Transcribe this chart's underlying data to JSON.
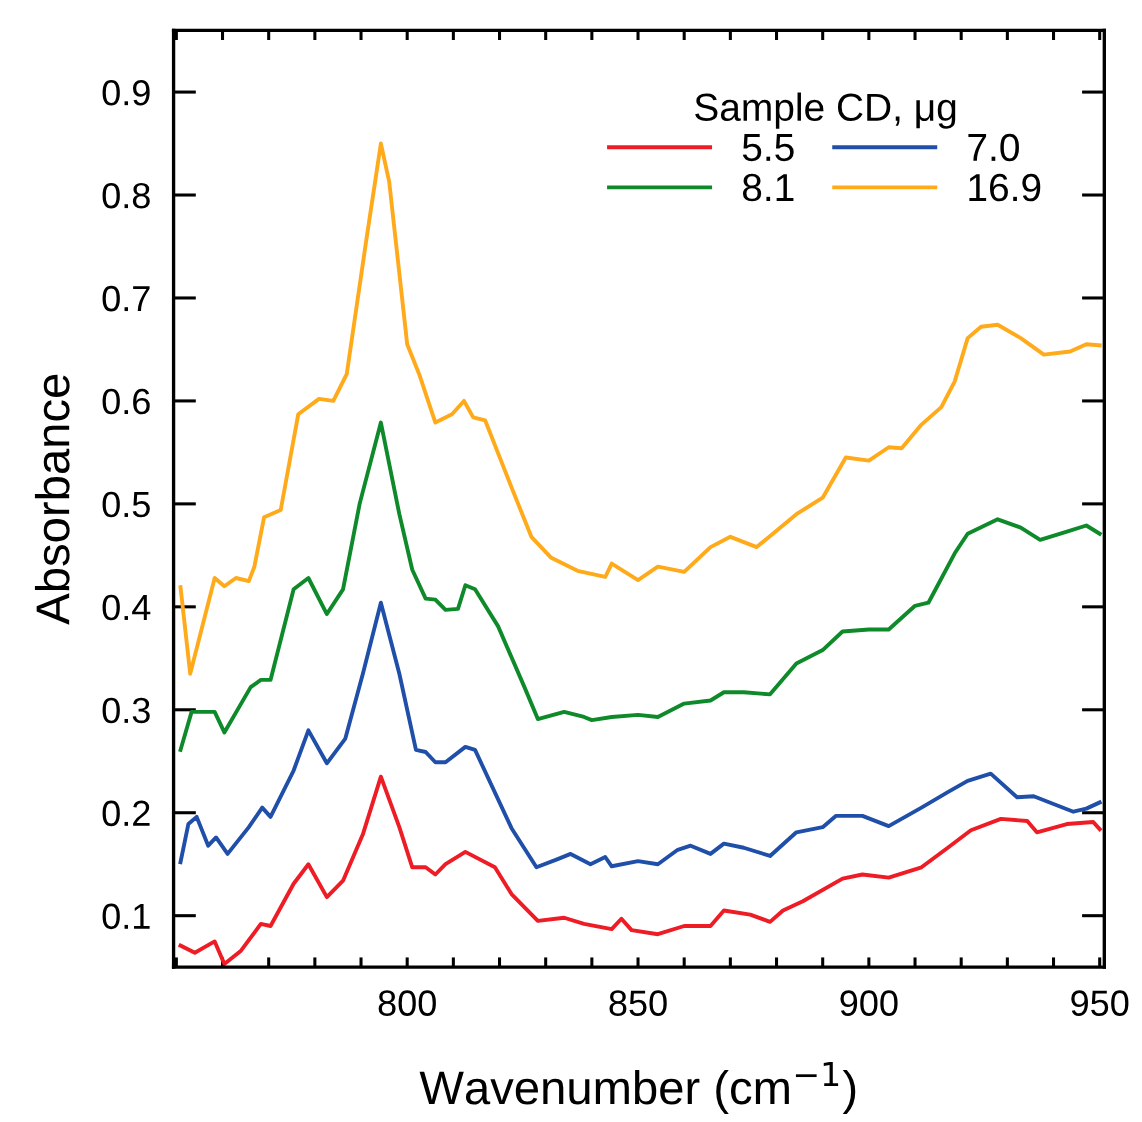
{
  "chart_data": {
    "type": "line",
    "xlabel": "Wavenumber (cm$^{−1}$)",
    "ylabel": "Absorbance",
    "legend_title": "Sample CD, μg",
    "legend": "top right",
    "grid": false,
    "marker": "none",
    "line_style": "solid",
    "xlim": [
      749.4,
      951
    ],
    "ylim": [
      0.05,
      0.96
    ],
    "xticks": [
      {
        "value": 750,
        "label": null
      },
      {
        "value": 760,
        "label": null
      },
      {
        "value": 770,
        "label": null
      },
      {
        "value": 780,
        "label": null
      },
      {
        "value": 790,
        "label": null
      },
      800,
      {
        "value": 810,
        "label": null
      },
      {
        "value": 820,
        "label": null
      },
      {
        "value": 830,
        "label": null
      },
      {
        "value": 840,
        "label": null
      },
      850,
      {
        "value": 860,
        "label": null
      },
      {
        "value": 870,
        "label": null
      },
      {
        "value": 880,
        "label": null
      },
      {
        "value": 890,
        "label": null
      },
      900,
      {
        "value": 910,
        "label": null
      },
      {
        "value": 920,
        "label": null
      },
      {
        "value": 930,
        "label": null
      },
      {
        "value": 940,
        "label": null
      },
      950
    ],
    "yticks": [
      0.1,
      0.2,
      0.3,
      0.4,
      0.5,
      0.6,
      0.7,
      0.8,
      0.9
    ],
    "series": [
      {
        "name": "5.5",
        "color": "#ee1c25",
        "x": [
          750.9,
          754,
          758.3,
          760.4,
          764,
          768.3,
          770.4,
          775.4,
          778.6,
          782.6,
          786.1,
          790.4,
          794.3,
          798.3,
          801.1,
          804,
          806.1,
          808.3,
          812.6,
          819,
          822.6,
          828.3,
          834,
          838.3,
          844.3,
          846.4,
          848.6,
          854.3,
          860,
          865.7,
          868.6,
          874.3,
          878.6,
          881.4,
          885.7,
          894.3,
          898.6,
          904.3,
          911.4,
          917.1,
          922.1,
          928.6,
          934.3,
          936.4,
          942.9,
          948.6,
          950
        ],
        "values": [
          0.071,
          0.064,
          0.075,
          0.053,
          0.066,
          0.092,
          0.09,
          0.131,
          0.15,
          0.118,
          0.134,
          0.179,
          0.235,
          0.186,
          0.147,
          0.147,
          0.14,
          0.15,
          0.162,
          0.147,
          0.121,
          0.095,
          0.098,
          0.092,
          0.087,
          0.097,
          0.086,
          0.082,
          0.09,
          0.09,
          0.105,
          0.101,
          0.094,
          0.105,
          0.114,
          0.136,
          0.14,
          0.137,
          0.147,
          0.166,
          0.183,
          0.194,
          0.192,
          0.181,
          0.189,
          0.191,
          0.184
        ]
      },
      {
        "name": "7.0",
        "color": "#1f4fa8",
        "x": [
          750.9,
          752.6,
          754.4,
          756.9,
          758.6,
          761.1,
          765.7,
          768.6,
          770.4,
          775.4,
          778.6,
          782.6,
          786.6,
          790.4,
          794.3,
          798.3,
          801.9,
          804,
          806.1,
          808.3,
          812.6,
          814.7,
          822.6,
          828,
          832.6,
          835.4,
          839.7,
          842.9,
          844.3,
          850,
          854.3,
          858.6,
          861.4,
          865.7,
          868.6,
          872.9,
          878.6,
          884.3,
          890,
          892.9,
          898.6,
          904.3,
          911.4,
          917.1,
          921.4,
          926.4,
          932.1,
          935.7,
          944.3,
          947.1,
          950
        ],
        "values": [
          0.152,
          0.189,
          0.196,
          0.168,
          0.176,
          0.16,
          0.186,
          0.205,
          0.196,
          0.241,
          0.28,
          0.248,
          0.272,
          0.335,
          0.404,
          0.335,
          0.261,
          0.259,
          0.249,
          0.249,
          0.264,
          0.261,
          0.185,
          0.147,
          0.155,
          0.16,
          0.15,
          0.157,
          0.148,
          0.153,
          0.15,
          0.164,
          0.168,
          0.16,
          0.17,
          0.166,
          0.158,
          0.181,
          0.186,
          0.197,
          0.197,
          0.187,
          0.205,
          0.22,
          0.231,
          0.238,
          0.215,
          0.216,
          0.201,
          0.204,
          0.21
        ]
      },
      {
        "name": "8.1",
        "color": "#0f8a2a",
        "x": [
          750.9,
          753.3,
          758.3,
          760.4,
          766.1,
          768.3,
          770.4,
          775.4,
          778.6,
          782.6,
          786.1,
          789.7,
          794.3,
          798.3,
          801.1,
          804,
          806.1,
          808.3,
          811,
          812.6,
          814.7,
          819.7,
          825.4,
          828.3,
          834,
          838.3,
          840,
          844.3,
          850,
          854.3,
          860,
          865.7,
          868.6,
          872.9,
          878.6,
          884.3,
          890,
          894.3,
          900,
          904.3,
          910,
          912.9,
          918.6,
          921.4,
          927.9,
          932.9,
          937.1,
          942.9,
          947.1,
          950
        ],
        "values": [
          0.261,
          0.298,
          0.298,
          0.278,
          0.322,
          0.329,
          0.329,
          0.417,
          0.428,
          0.393,
          0.417,
          0.5,
          0.579,
          0.49,
          0.436,
          0.408,
          0.407,
          0.397,
          0.398,
          0.421,
          0.417,
          0.381,
          0.322,
          0.291,
          0.298,
          0.293,
          0.29,
          0.293,
          0.295,
          0.293,
          0.306,
          0.309,
          0.317,
          0.317,
          0.315,
          0.345,
          0.358,
          0.376,
          0.378,
          0.378,
          0.401,
          0.404,
          0.452,
          0.471,
          0.485,
          0.477,
          0.465,
          0.473,
          0.479,
          0.471
        ]
      },
      {
        "name": "16.9",
        "color": "#ffaa1a",
        "x": [
          750.9,
          753,
          758.3,
          760.4,
          762.9,
          765.7,
          766.9,
          769,
          772.6,
          776.4,
          780.9,
          784,
          786.9,
          791.1,
          794.3,
          796.1,
          800,
          802.6,
          806.1,
          809.7,
          812.3,
          814.3,
          816.9,
          822.6,
          826.9,
          831.1,
          836.9,
          842.9,
          844.3,
          850,
          854.3,
          860,
          865.7,
          870,
          875.7,
          880,
          884.3,
          890,
          895,
          900,
          904.3,
          907.1,
          911.4,
          915.7,
          918.6,
          921.4,
          924.3,
          927.9,
          932.9,
          937.9,
          943.6,
          947.1,
          950
        ],
        "values": [
          0.419,
          0.335,
          0.428,
          0.42,
          0.428,
          0.425,
          0.439,
          0.487,
          0.494,
          0.587,
          0.602,
          0.6,
          0.626,
          0.755,
          0.85,
          0.813,
          0.655,
          0.626,
          0.579,
          0.587,
          0.6,
          0.584,
          0.581,
          0.516,
          0.468,
          0.448,
          0.435,
          0.429,
          0.442,
          0.426,
          0.439,
          0.434,
          0.458,
          0.468,
          0.458,
          0.474,
          0.49,
          0.506,
          0.545,
          0.542,
          0.555,
          0.554,
          0.577,
          0.594,
          0.619,
          0.661,
          0.672,
          0.674,
          0.661,
          0.645,
          0.648,
          0.655,
          0.654
        ]
      }
    ]
  }
}
